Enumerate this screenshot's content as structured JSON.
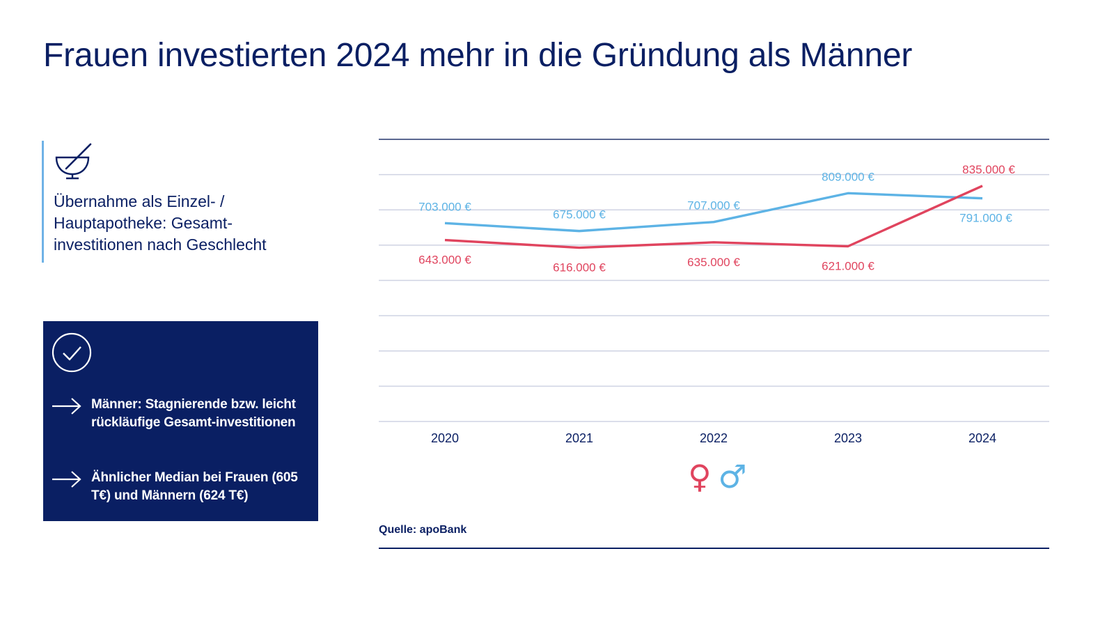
{
  "title": "Frauen investierten 2024 mehr in die Gründung als Männer",
  "intro": {
    "icon": "mortar-pestle-icon",
    "caption": "Übernahme als Einzel- / Hauptapotheke: Gesamt-investitionen nach Geschlecht"
  },
  "insights": {
    "icon": "check-circle-icon",
    "items": [
      "Männer: Stagnierende bzw. leicht rückläufige Gesamt-investitionen",
      "Ähnlicher Median bei Frauen (605 T€) und Männern (624 T€)"
    ]
  },
  "legend_icons": {
    "female": "♀",
    "male": "♂"
  },
  "source": "Quelle: apoBank",
  "colors": {
    "navy": "#0a1f63",
    "female": "#e0445e",
    "male": "#5db3e5",
    "grid": "#cfd3e3"
  },
  "chart_data": {
    "type": "line",
    "categories": [
      "2020",
      "2021",
      "2022",
      "2023",
      "2024"
    ],
    "ylim": [
      0,
      1000000
    ],
    "grid": true,
    "series": [
      {
        "key": "female",
        "values": [
          643000,
          616000,
          635000,
          621000,
          835000
        ],
        "labels": [
          "643.000 €",
          "616.000 €",
          "635.000 €",
          "621.000 €",
          "835.000 €"
        ]
      },
      {
        "key": "male",
        "values": [
          703000,
          675000,
          707000,
          809000,
          791000
        ],
        "labels": [
          "703.000 €",
          "675.000 €",
          "707.000 €",
          "809.000 €",
          "791.000 €"
        ]
      }
    ]
  }
}
